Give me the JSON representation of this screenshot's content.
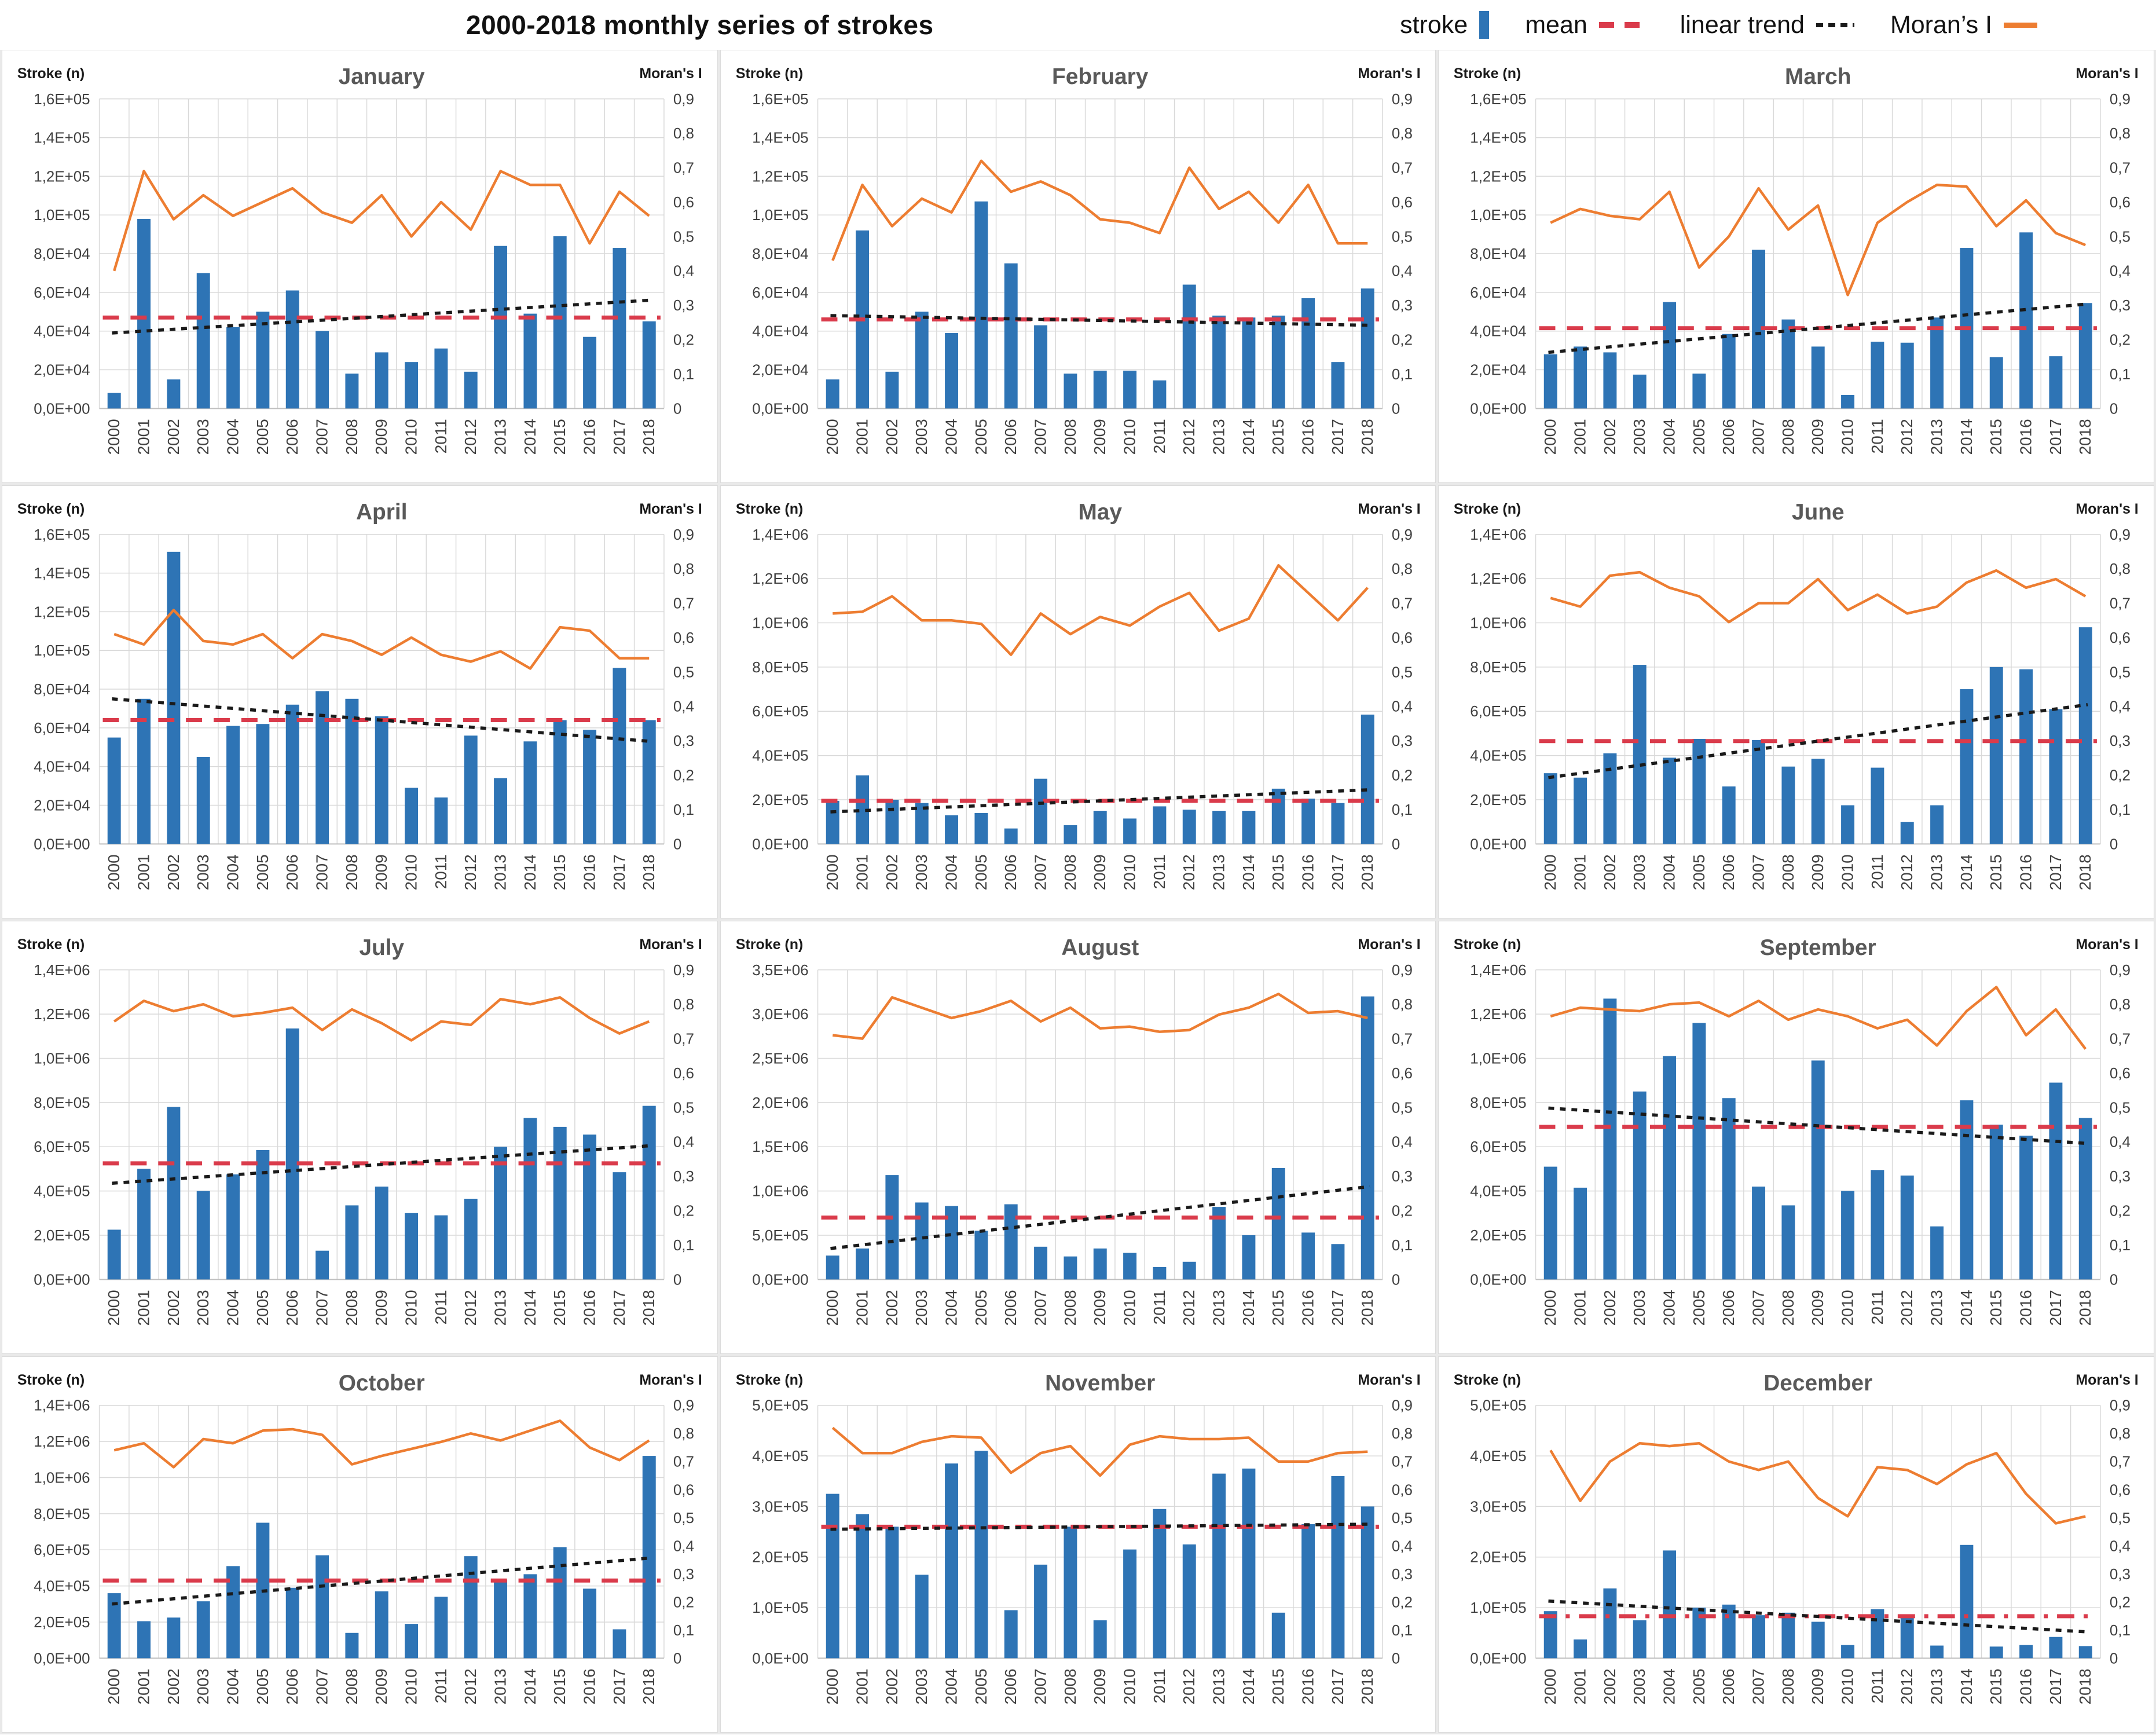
{
  "header": {
    "title": "2000-2018 monthly series of strokes",
    "legend": [
      {
        "label": "stroke",
        "swatch": "bar-blue",
        "icon": "bar-swatch-icon"
      },
      {
        "label": "mean",
        "swatch": "dash-red",
        "icon": "red-dash-icon"
      },
      {
        "label": "linear trend",
        "swatch": "dash-black",
        "icon": "black-dash-icon"
      },
      {
        "label": "Moran’s I",
        "swatch": "line-orange",
        "icon": "orange-line-icon"
      }
    ]
  },
  "colors": {
    "bar": "#2E74B5",
    "moran_line": "#ED7D31",
    "mean_line": "#da3b4b",
    "trend_line": "#1a1a1a",
    "grid_line": "#d9d9d9",
    "axis_line": "#bfbfbf",
    "panel_title": "#595959",
    "tick_text": "#404040",
    "corner_text": "#1a1a1a"
  },
  "chart_data": {
    "type": "bar+line",
    "layout": {
      "rows": 4,
      "cols": 3
    },
    "years": [
      2000,
      2001,
      2002,
      2003,
      2004,
      2005,
      2006,
      2007,
      2008,
      2009,
      2010,
      2011,
      2012,
      2013,
      2014,
      2015,
      2016,
      2017,
      2018
    ],
    "right_axis": {
      "label": "Moran's I",
      "max": 0.9,
      "tick_labels": [
        "0",
        "0,1",
        "0,2",
        "0,3",
        "0,4",
        "0,5",
        "0,6",
        "0,7",
        "0,8",
        "0,9"
      ]
    },
    "left_axis_label": "Stroke (n)",
    "panels": [
      {
        "id": "january",
        "title": "January",
        "ymax": 160000,
        "ytick_labels": [
          "0,0E+00",
          "2,0E+04",
          "4,0E+04",
          "6,0E+04",
          "8,0E+04",
          "1,0E+05",
          "1,2E+05",
          "1,4E+05",
          "1,6E+05"
        ],
        "stroke_values": [
          8000,
          98000,
          15000,
          70000,
          42000,
          50000,
          61000,
          40000,
          18000,
          29000,
          24000,
          31000,
          19000,
          84000,
          49000,
          89000,
          37000,
          83000,
          45000
        ],
        "morans_i_values": [
          0.4,
          0.69,
          0.55,
          0.62,
          0.56,
          0.6,
          0.64,
          0.57,
          0.54,
          0.62,
          0.5,
          0.6,
          0.52,
          0.69,
          0.65,
          0.65,
          0.48,
          0.63,
          0.56
        ],
        "mean_value": 47000,
        "trend": [
          39000,
          56000
        ],
        "mean_line_style": "dash"
      },
      {
        "id": "february",
        "title": "February",
        "ymax": 160000,
        "ytick_labels": [
          "0,0E+00",
          "2,0E+04",
          "4,0E+04",
          "6,0E+04",
          "8,0E+04",
          "1,0E+05",
          "1,2E+05",
          "1,4E+05",
          "1,6E+05"
        ],
        "stroke_values": [
          15000,
          92000,
          19000,
          50000,
          39000,
          107000,
          75000,
          43000,
          18000,
          19500,
          19500,
          14500,
          64000,
          48000,
          47000,
          48000,
          57000,
          24000,
          62000
        ],
        "morans_i_values": [
          0.43,
          0.65,
          0.53,
          0.61,
          0.57,
          0.72,
          0.63,
          0.66,
          0.62,
          0.55,
          0.54,
          0.51,
          0.7,
          0.58,
          0.63,
          0.54,
          0.65,
          0.48,
          0.48
        ],
        "mean_value": 46000,
        "trend": [
          48000,
          43000
        ],
        "mean_line_style": "dash"
      },
      {
        "id": "march",
        "title": "March",
        "ymax": 160000,
        "ytick_labels": [
          "0,0E+00",
          "2,0E+04",
          "4,0E+04",
          "6,0E+04",
          "8,0E+04",
          "1,0E+05",
          "1,2E+05",
          "1,4E+05",
          "1,6E+05"
        ],
        "stroke_values": [
          28000,
          32000,
          29000,
          17500,
          55000,
          18000,
          38500,
          82000,
          46000,
          32000,
          7000,
          34500,
          34000,
          47000,
          83000,
          26500,
          91000,
          27000,
          54500
        ],
        "morans_i_values": [
          0.54,
          0.58,
          0.56,
          0.55,
          0.63,
          0.41,
          0.5,
          0.64,
          0.52,
          0.59,
          0.33,
          0.54,
          0.6,
          0.65,
          0.645,
          0.53,
          0.605,
          0.51,
          0.475
        ],
        "mean_value": 41500,
        "trend": [
          29000,
          54000
        ],
        "mean_line_style": "dash"
      },
      {
        "id": "april",
        "title": "April",
        "ymax": 160000,
        "ytick_labels": [
          "0,0E+00",
          "2,0E+04",
          "4,0E+04",
          "6,0E+04",
          "8,0E+04",
          "1,0E+05",
          "1,2E+05",
          "1,4E+05",
          "1,6E+05"
        ],
        "stroke_values": [
          55000,
          75000,
          151000,
          45000,
          61000,
          62000,
          72000,
          79000,
          75000,
          66000,
          29000,
          24000,
          56000,
          34000,
          53000,
          64000,
          59000,
          91000,
          64000
        ],
        "morans_i_values": [
          0.61,
          0.58,
          0.68,
          0.59,
          0.58,
          0.61,
          0.54,
          0.61,
          0.59,
          0.55,
          0.6,
          0.55,
          0.53,
          0.56,
          0.51,
          0.63,
          0.62,
          0.54,
          0.54
        ],
        "mean_value": 64000,
        "trend": [
          75000,
          53000
        ],
        "mean_line_style": "dash"
      },
      {
        "id": "may",
        "title": "May",
        "ymax": 1400000,
        "ytick_labels": [
          "0,0E+00",
          "2,0E+05",
          "4,0E+05",
          "6,0E+05",
          "8,0E+05",
          "1,0E+06",
          "1,2E+06",
          "1,4E+06"
        ],
        "stroke_values": [
          195000,
          310000,
          200000,
          185000,
          130000,
          140000,
          70000,
          295000,
          85000,
          150000,
          115000,
          170000,
          155000,
          150000,
          150000,
          250000,
          205000,
          185000,
          585000
        ],
        "morans_i_values": [
          0.67,
          0.675,
          0.72,
          0.65,
          0.65,
          0.64,
          0.55,
          0.67,
          0.61,
          0.66,
          0.635,
          0.69,
          0.73,
          0.62,
          0.655,
          0.81,
          0.73,
          0.65,
          0.745
        ],
        "mean_value": 195000,
        "trend": [
          145000,
          245000
        ],
        "mean_line_style": "dash"
      },
      {
        "id": "june",
        "title": "June",
        "ymax": 1400000,
        "ytick_labels": [
          "0,0E+00",
          "2,0E+05",
          "4,0E+05",
          "6,0E+05",
          "8,0E+05",
          "1,0E+06",
          "1,2E+06",
          "1,4E+06"
        ],
        "stroke_values": [
          320000,
          300000,
          410000,
          810000,
          390000,
          475000,
          260000,
          470000,
          350000,
          385000,
          175000,
          345000,
          100000,
          175000,
          700000,
          800000,
          790000,
          610000,
          980000
        ],
        "morans_i_values": [
          0.715,
          0.69,
          0.78,
          0.79,
          0.745,
          0.72,
          0.645,
          0.7,
          0.7,
          0.77,
          0.68,
          0.725,
          0.67,
          0.69,
          0.76,
          0.795,
          0.745,
          0.77,
          0.72
        ],
        "mean_value": 465000,
        "trend": [
          300000,
          630000
        ],
        "mean_line_style": "dash"
      },
      {
        "id": "july",
        "title": "July",
        "ymax": 1400000,
        "ytick_labels": [
          "0,0E+00",
          "2,0E+05",
          "4,0E+05",
          "6,0E+05",
          "8,0E+05",
          "1,0E+06",
          "1,2E+06",
          "1,4E+06"
        ],
        "stroke_values": [
          225000,
          500000,
          780000,
          400000,
          475000,
          585000,
          1135000,
          130000,
          335000,
          420000,
          300000,
          290000,
          365000,
          600000,
          730000,
          690000,
          655000,
          485000,
          785000
        ],
        "morans_i_values": [
          0.75,
          0.81,
          0.78,
          0.8,
          0.765,
          0.775,
          0.79,
          0.725,
          0.785,
          0.745,
          0.695,
          0.75,
          0.74,
          0.815,
          0.8,
          0.82,
          0.76,
          0.715,
          0.75
        ],
        "mean_value": 525000,
        "trend": [
          435000,
          605000
        ],
        "mean_line_style": "dash"
      },
      {
        "id": "august",
        "title": "August",
        "ymax": 3500000,
        "ytick_labels": [
          "0,0E+00",
          "5,0E+05",
          "1,0E+06",
          "1,5E+06",
          "2,0E+06",
          "2,5E+06",
          "3,0E+06",
          "3,5E+06"
        ],
        "stroke_values": [
          270000,
          350000,
          1180000,
          870000,
          830000,
          550000,
          850000,
          370000,
          260000,
          350000,
          300000,
          140000,
          200000,
          820000,
          500000,
          1260000,
          530000,
          400000,
          3200000
        ],
        "morans_i_values": [
          0.71,
          0.7,
          0.82,
          0.79,
          0.76,
          0.78,
          0.81,
          0.75,
          0.79,
          0.73,
          0.735,
          0.72,
          0.725,
          0.77,
          0.79,
          0.83,
          0.775,
          0.78,
          0.76
        ],
        "mean_value": 700000,
        "trend": [
          350000,
          1050000
        ],
        "mean_line_style": "dash"
      },
      {
        "id": "september",
        "title": "September",
        "ymax": 1400000,
        "ytick_labels": [
          "0,0E+00",
          "2,0E+05",
          "4,0E+05",
          "6,0E+05",
          "8,0E+05",
          "1,0E+06",
          "1,2E+06",
          "1,4E+06"
        ],
        "stroke_values": [
          510000,
          415000,
          1270000,
          850000,
          1010000,
          1160000,
          820000,
          420000,
          335000,
          990000,
          400000,
          495000,
          470000,
          240000,
          810000,
          700000,
          650000,
          890000,
          730000
        ],
        "morans_i_values": [
          0.765,
          0.79,
          0.785,
          0.78,
          0.8,
          0.805,
          0.765,
          0.81,
          0.755,
          0.785,
          0.765,
          0.73,
          0.755,
          0.68,
          0.78,
          0.85,
          0.71,
          0.785,
          0.67
        ],
        "mean_value": 690000,
        "trend": [
          775000,
          615000
        ],
        "mean_line_style": "dash"
      },
      {
        "id": "october",
        "title": "October",
        "ymax": 1400000,
        "ytick_labels": [
          "0,0E+00",
          "2,0E+05",
          "4,0E+05",
          "6,0E+05",
          "8,0E+05",
          "1,0E+06",
          "1,2E+06",
          "1,4E+06"
        ],
        "stroke_values": [
          360000,
          205000,
          225000,
          315000,
          510000,
          750000,
          390000,
          570000,
          140000,
          370000,
          190000,
          340000,
          565000,
          435000,
          465000,
          615000,
          385000,
          160000,
          1120000
        ],
        "morans_i_values": [
          0.74,
          0.765,
          0.68,
          0.78,
          0.765,
          0.81,
          0.815,
          0.795,
          0.69,
          0.72,
          0.745,
          0.77,
          0.8,
          0.775,
          0.81,
          0.845,
          0.75,
          0.705,
          0.775
        ],
        "mean_value": 430000,
        "trend": [
          300000,
          555000
        ],
        "mean_line_style": "dash"
      },
      {
        "id": "november",
        "title": "November",
        "ymax": 500000,
        "ytick_labels": [
          "0,0E+00",
          "1,0E+05",
          "2,0E+05",
          "3,0E+05",
          "4,0E+05",
          "5,0E+05"
        ],
        "stroke_values": [
          325000,
          285000,
          260000,
          165000,
          385000,
          410000,
          95000,
          185000,
          260000,
          75000,
          215000,
          295000,
          225000,
          365000,
          375000,
          90000,
          265000,
          360000,
          300000
        ],
        "morans_i_values": [
          0.82,
          0.73,
          0.73,
          0.77,
          0.79,
          0.785,
          0.66,
          0.73,
          0.755,
          0.65,
          0.76,
          0.79,
          0.78,
          0.78,
          0.785,
          0.7,
          0.7,
          0.73,
          0.735
        ],
        "mean_value": 260000,
        "trend": [
          255000,
          265000
        ],
        "mean_line_style": "dash"
      },
      {
        "id": "december",
        "title": "December",
        "ymax": 500000,
        "ytick_labels": [
          "0,0E+00",
          "1,0E+05",
          "2,0E+05",
          "3,0E+05",
          "4,0E+05",
          "5,0E+05"
        ],
        "stroke_values": [
          93000,
          37000,
          138000,
          75000,
          213000,
          100000,
          106000,
          85000,
          90000,
          72000,
          26000,
          97000,
          83000,
          25000,
          224000,
          23000,
          26000,
          42000,
          24000
        ],
        "morans_i_values": [
          0.74,
          0.56,
          0.7,
          0.765,
          0.755,
          0.765,
          0.7,
          0.67,
          0.7,
          0.57,
          0.505,
          0.68,
          0.67,
          0.62,
          0.69,
          0.73,
          0.585,
          0.48,
          0.505
        ],
        "mean_value": 83000,
        "trend": [
          113000,
          52000
        ],
        "mean_line_style": "dashdot"
      }
    ]
  }
}
